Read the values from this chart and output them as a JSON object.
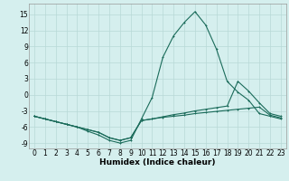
{
  "xlabel": "Humidex (Indice chaleur)",
  "background_color": "#d5efee",
  "grid_color": "#b8d9d6",
  "line_color": "#1a6b5a",
  "x_values": [
    0,
    1,
    2,
    3,
    4,
    5,
    6,
    7,
    8,
    9,
    10,
    11,
    12,
    13,
    14,
    15,
    16,
    17,
    18,
    19,
    20,
    21,
    22,
    23
  ],
  "line1": [
    -4.0,
    -4.5,
    -5.0,
    -5.5,
    -6.0,
    -6.5,
    -7.0,
    -8.0,
    -8.5,
    -8.0,
    -4.8,
    -4.5,
    -4.2,
    -4.0,
    -3.8,
    -3.5,
    -3.3,
    -3.1,
    -2.9,
    -2.7,
    -2.5,
    -2.3,
    -3.8,
    -4.3
  ],
  "line2": [
    -4.0,
    -4.5,
    -5.0,
    -5.5,
    -6.0,
    -6.8,
    -7.5,
    -8.5,
    -9.0,
    -8.5,
    -4.5,
    -0.5,
    7.0,
    11.0,
    13.5,
    15.5,
    13.0,
    8.5,
    2.5,
    0.5,
    -1.0,
    -3.5,
    -4.0,
    -4.5
  ],
  "line3": [
    -4.0,
    -4.5,
    -5.0,
    -5.5,
    -6.0,
    -6.5,
    -7.0,
    -8.0,
    -8.5,
    -8.0,
    -4.8,
    -4.5,
    -4.1,
    -3.7,
    -3.4,
    -3.0,
    -2.7,
    -2.4,
    -2.1,
    2.5,
    0.7,
    -1.5,
    -3.5,
    -4.0
  ],
  "ylim": [
    -10,
    17
  ],
  "xlim": [
    -0.5,
    23.5
  ],
  "yticks": [
    -9,
    -6,
    -3,
    0,
    3,
    6,
    9,
    12,
    15
  ],
  "xticks": [
    0,
    1,
    2,
    3,
    4,
    5,
    6,
    7,
    8,
    9,
    10,
    11,
    12,
    13,
    14,
    15,
    16,
    17,
    18,
    19,
    20,
    21,
    22,
    23
  ],
  "tick_fontsize": 5.5,
  "label_fontsize": 6.5
}
